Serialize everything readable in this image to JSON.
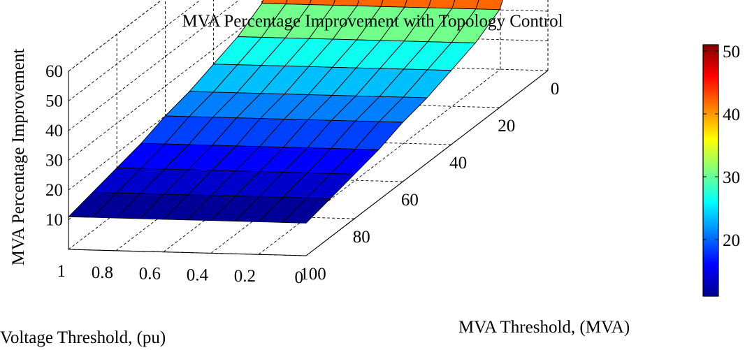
{
  "chart_data": {
    "type": "surface",
    "title": "MVA Percentage Improvement with Topology Control",
    "xlabel": "MVA Threshold, (MVA)",
    "ylabel": "Voltage Threshold, (pu)",
    "zlabel": "MVA Percentage Improvement",
    "x_ticks": [
      "100",
      "80",
      "60",
      "40",
      "20",
      "0"
    ],
    "y_ticks": [
      "1",
      "0.8",
      "0.6",
      "0.4",
      "0.2",
      "0"
    ],
    "z_ticks": [
      "10",
      "20",
      "30",
      "40",
      "50",
      "60"
    ],
    "colorbar_ticks": [
      "20",
      "30",
      "40",
      "50"
    ],
    "xlim": [
      0,
      100
    ],
    "ylim": [
      0,
      1
    ],
    "zlim": [
      0,
      60
    ],
    "color_range": [
      11,
      51
    ],
    "colormap": "jet",
    "grid": true,
    "x": [
      100,
      90,
      80,
      70,
      60,
      50,
      40,
      30,
      20,
      10,
      0
    ],
    "y": [
      1.0,
      0.9,
      0.8,
      0.7,
      0.6,
      0.5,
      0.4,
      0.3,
      0.2,
      0.1,
      0.0
    ],
    "z_by_mva": [
      [
        11,
        11,
        11,
        11,
        11,
        11,
        11,
        11,
        11,
        11,
        11
      ],
      [
        13,
        13,
        13,
        13,
        13,
        13,
        13,
        13,
        13,
        13,
        13
      ],
      [
        15,
        15,
        15,
        15,
        15,
        15,
        15,
        15,
        15,
        15,
        15
      ],
      [
        17,
        17,
        17,
        17,
        17,
        17,
        17,
        17,
        17,
        17,
        17
      ],
      [
        20,
        20,
        20,
        20,
        20,
        20,
        20,
        20,
        20,
        20,
        20
      ],
      [
        22,
        22,
        22,
        22,
        22,
        22,
        22,
        22,
        22,
        22,
        22
      ],
      [
        25,
        25,
        25,
        25,
        25,
        25,
        25,
        25,
        25,
        25,
        25
      ],
      [
        28,
        28,
        28,
        28,
        28,
        28,
        28,
        28,
        28,
        28,
        28
      ],
      [
        33,
        33,
        33,
        33,
        33,
        33,
        33,
        33,
        33,
        33,
        33
      ],
      [
        51,
        51,
        51,
        51,
        51,
        51,
        51,
        51,
        51,
        51,
        51
      ],
      [
        51,
        51,
        51,
        51,
        51,
        51,
        51,
        51,
        51,
        51,
        51
      ]
    ]
  }
}
